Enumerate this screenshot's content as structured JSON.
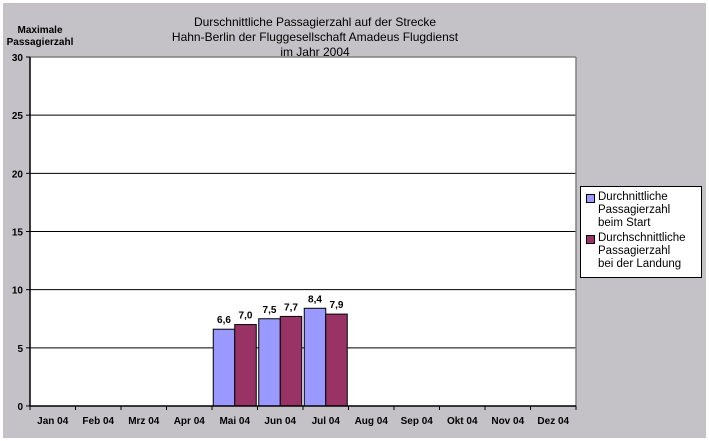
{
  "chart_data": {
    "type": "bar",
    "title": [
      "Durschnittliche Passagierzahl auf der Strecke",
      "Hahn-Berlin der Fluggesellschaft Amadeus Flugdienst",
      "im Jahr 2004"
    ],
    "ylabel": [
      "Maximale",
      "Passagierzahl"
    ],
    "xlabel": "",
    "ylim": [
      0,
      30
    ],
    "yticks": [
      "0",
      "5",
      "10",
      "15",
      "20",
      "25",
      "30"
    ],
    "ytick_values": [
      0,
      5,
      10,
      15,
      20,
      25,
      30
    ],
    "grid": true,
    "legend_position": "right",
    "categories": [
      "Jan 04",
      "Feb 04",
      "Mrz 04",
      "Apr 04",
      "Mai 04",
      "Jun 04",
      "Jul 04",
      "Aug 04",
      "Sep 04",
      "Okt 04",
      "Nov 04",
      "Dez 04"
    ],
    "series": [
      {
        "name": "Durchnittliche Passagierzahl beim Start",
        "legend_lines": [
          "Durchnittliche",
          "Passagierzahl",
          "beim Start"
        ],
        "color": "#9999ff",
        "values": [
          null,
          null,
          null,
          null,
          6.6,
          7.5,
          8.4,
          null,
          null,
          null,
          null,
          null
        ],
        "labels": [
          "",
          "",
          "",
          "",
          "6,6",
          "7,5",
          "8,4",
          "",
          "",
          "",
          "",
          ""
        ]
      },
      {
        "name": "Durchschnittliche Passagierzahl bei der Landung",
        "legend_lines": [
          "Durchschnittliche",
          "Passagierzahl",
          "bei der Landung"
        ],
        "color": "#993366",
        "values": [
          null,
          null,
          null,
          null,
          7.0,
          7.7,
          7.9,
          null,
          null,
          null,
          null,
          null
        ],
        "labels": [
          "",
          "",
          "",
          "",
          "7,0",
          "7,7",
          "7,9",
          "",
          "",
          "",
          "",
          ""
        ]
      }
    ]
  }
}
